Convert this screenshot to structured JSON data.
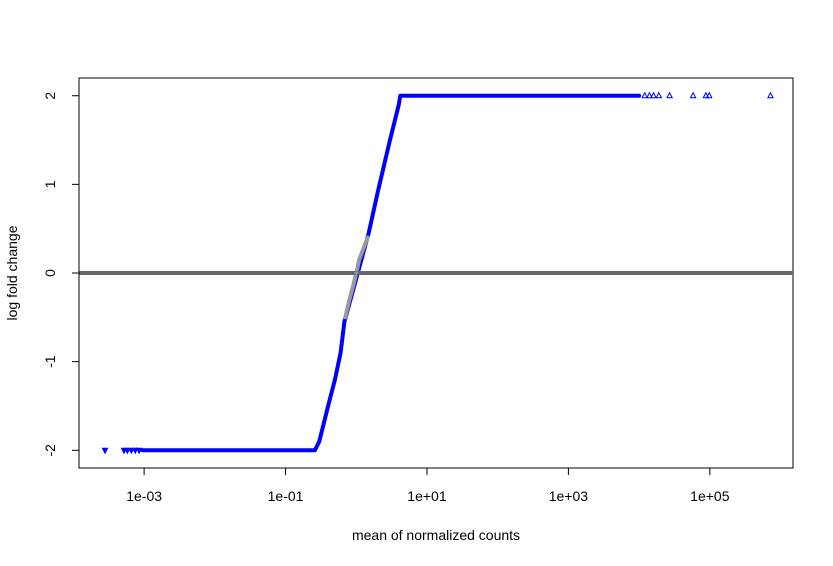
{
  "chart_data": {
    "type": "scatter",
    "title": "",
    "xlabel": "mean of normalized counts",
    "ylabel": "log fold change",
    "x_scale": "log10",
    "xlim": [
      0.00012,
      1500000
    ],
    "ylim": [
      -2.2,
      2.2
    ],
    "x_ticks": [
      {
        "value": 0.001,
        "label": "1e-03"
      },
      {
        "value": 0.1,
        "label": "1e-01"
      },
      {
        "value": 10,
        "label": "1e+01"
      },
      {
        "value": 1000,
        "label": "1e+03"
      },
      {
        "value": 100000,
        "label": "1e+05"
      }
    ],
    "y_ticks": [
      {
        "value": -2,
        "label": "-2"
      },
      {
        "value": -1,
        "label": "-1"
      },
      {
        "value": 0,
        "label": "0"
      },
      {
        "value": 1,
        "label": "1"
      },
      {
        "value": 2,
        "label": "2"
      }
    ],
    "reference_line": {
      "y": 0,
      "color": "#666666"
    },
    "grid": false,
    "legend": "none",
    "series": [
      {
        "color": "#0000ff",
        "marker": "point",
        "points": [
          {
            "x": 0.00095,
            "y": -2
          },
          {
            "x": 0.0015,
            "y": -2
          },
          {
            "x": 0.003,
            "y": -2
          },
          {
            "x": 0.01,
            "y": -2
          },
          {
            "x": 0.03,
            "y": -2
          },
          {
            "x": 0.1,
            "y": -2
          },
          {
            "x": 0.2,
            "y": -2
          },
          {
            "x": 0.26,
            "y": -2
          },
          {
            "x": 0.3,
            "y": -1.9
          },
          {
            "x": 0.4,
            "y": -1.5
          },
          {
            "x": 0.5,
            "y": -1.2
          },
          {
            "x": 0.6,
            "y": -0.9
          },
          {
            "x": 0.68,
            "y": -0.55
          },
          {
            "x": 1.5,
            "y": 0.45
          },
          {
            "x": 2,
            "y": 0.9
          },
          {
            "x": 3,
            "y": 1.5
          },
          {
            "x": 4,
            "y": 1.9
          },
          {
            "x": 4.2,
            "y": 2
          },
          {
            "x": 10,
            "y": 2
          },
          {
            "x": 30,
            "y": 2
          },
          {
            "x": 100,
            "y": 2
          },
          {
            "x": 300,
            "y": 2
          },
          {
            "x": 1000,
            "y": 2
          },
          {
            "x": 3000,
            "y": 2
          },
          {
            "x": 10000,
            "y": 2
          }
        ]
      },
      {
        "color": "#0000ff",
        "marker": "triangle-down",
        "points": [
          {
            "x": 0.00028,
            "y": -2
          },
          {
            "x": 0.00052,
            "y": -2
          },
          {
            "x": 0.00058,
            "y": -2
          },
          {
            "x": 0.00066,
            "y": -2
          },
          {
            "x": 0.00075,
            "y": -2
          },
          {
            "x": 0.00085,
            "y": -2
          }
        ]
      },
      {
        "color": "#0000ff",
        "marker": "triangle-up",
        "points": [
          {
            "x": 12000,
            "y": 2
          },
          {
            "x": 14000,
            "y": 2
          },
          {
            "x": 16000,
            "y": 2
          },
          {
            "x": 19000,
            "y": 2
          },
          {
            "x": 27000,
            "y": 2
          },
          {
            "x": 58000,
            "y": 2
          },
          {
            "x": 88000,
            "y": 2
          },
          {
            "x": 98000,
            "y": 2
          },
          {
            "x": 720000,
            "y": 2
          }
        ]
      },
      {
        "color": "#999999",
        "marker": "point",
        "points": [
          {
            "x": 0.7,
            "y": -0.5
          },
          {
            "x": 0.8,
            "y": -0.3
          },
          {
            "x": 0.9,
            "y": -0.15
          },
          {
            "x": 1.0,
            "y": 0.0
          },
          {
            "x": 1.1,
            "y": 0.15
          },
          {
            "x": 1.3,
            "y": 0.3
          },
          {
            "x": 1.45,
            "y": 0.4
          }
        ]
      }
    ]
  }
}
